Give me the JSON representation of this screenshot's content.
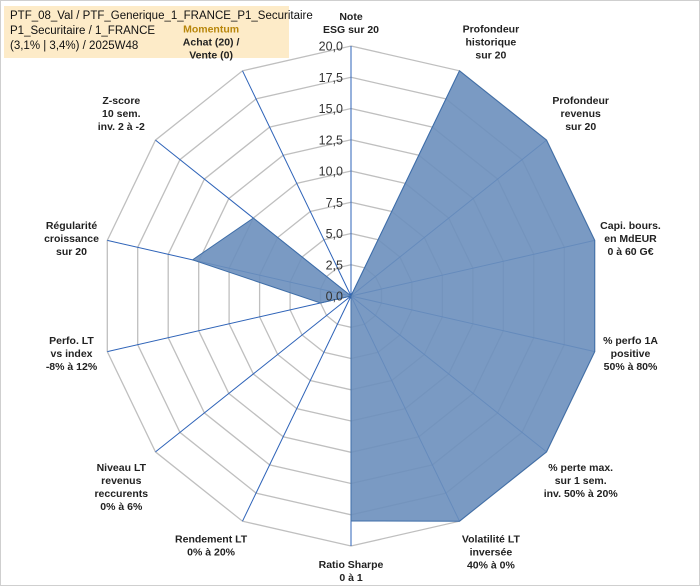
{
  "header": {
    "line1": "PTF_08_Val / PTF_Generique_1_FRANCE_P1_Securitaire",
    "line2": "P1_Securitaire / 1_FRANCE",
    "line3": "(3,1% | 3,4%) / 2025W48"
  },
  "colors": {
    "fill": "#6b8fbd",
    "stroke": "#3f6ea8",
    "spoke": "#2e63b8",
    "grid": "#bfbfbf",
    "title_bg": "#fdebc8",
    "highlight_label": "#b8860b"
  },
  "chart_data": {
    "type": "radar",
    "range": [
      0,
      20
    ],
    "ticks": [
      "0,0",
      "2,5",
      "5,0",
      "7,5",
      "10,0",
      "12,5",
      "15,0",
      "17,5",
      "20,0"
    ],
    "axes": [
      {
        "label": [
          "Note",
          "ESG sur 20"
        ],
        "value": 0
      },
      {
        "label": [
          "Profondeur",
          "historique",
          "sur 20"
        ],
        "value": 20
      },
      {
        "label": [
          "Profondeur",
          "revenus",
          "sur 20"
        ],
        "value": 20
      },
      {
        "label": [
          "Capi. bours.",
          "en MdEUR",
          "0 à 60 G€"
        ],
        "value": 20
      },
      {
        "label": [
          "% perfo 1A",
          "positive",
          "50% à 80%"
        ],
        "value": 20
      },
      {
        "label": [
          "% perte max.",
          "sur 1 sem.",
          "inv. 50% à 20%"
        ],
        "value": 20
      },
      {
        "label": [
          "Volatilité LT",
          "inversée",
          "40% à 0%"
        ],
        "value": 20
      },
      {
        "label": [
          "Ratio Sharpe",
          "0 à 1"
        ],
        "value": 18
      },
      {
        "label": [
          "Rendement LT",
          "0% à 20%"
        ],
        "value": 0
      },
      {
        "label": [
          "Niveau LT",
          "revenus",
          "reccurents",
          "0% à 6%"
        ],
        "value": 0
      },
      {
        "label": [
          "Perfo. LT",
          "vs index",
          "-8% à 12%"
        ],
        "value": 2.5
      },
      {
        "label": [
          "Régularité",
          "croissance",
          "sur 20"
        ],
        "value": 13
      },
      {
        "label": [
          "Z-score",
          "10 sem.",
          "inv. 2 à -2"
        ],
        "value": 10
      },
      {
        "label": [
          "Momentum",
          "Achat (20) /",
          "Vente (0)"
        ],
        "value": 0,
        "highlight_first_line": true
      }
    ]
  }
}
